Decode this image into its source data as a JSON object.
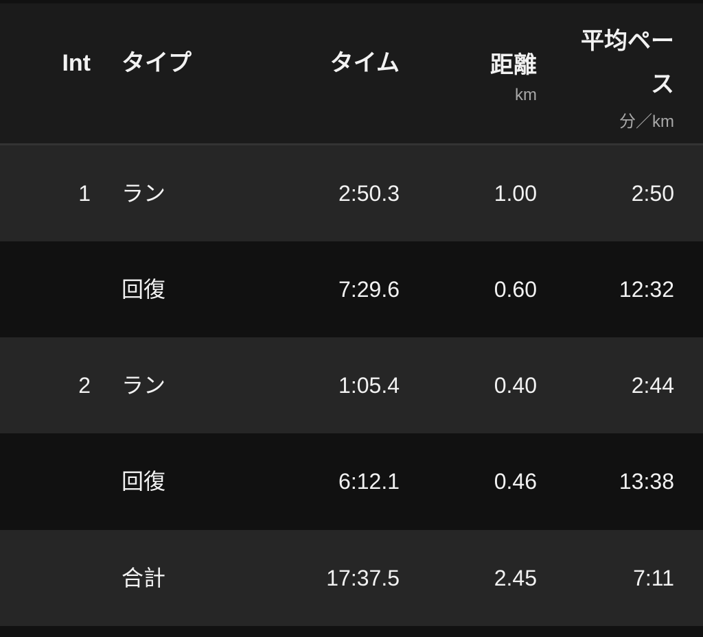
{
  "header": {
    "int": "Int",
    "type": "タイプ",
    "time": "タイム",
    "distance": "距離",
    "distance_unit": "km",
    "pace_line1": "平均ペー",
    "pace_line2": "ス",
    "pace_unit": "分／km"
  },
  "rows": [
    {
      "int": "1",
      "type": "ラン",
      "time": "2:50.3",
      "distance": "1.00",
      "pace": "2:50"
    },
    {
      "int": "",
      "type": "回復",
      "time": "7:29.6",
      "distance": "0.60",
      "pace": "12:32"
    },
    {
      "int": "2",
      "type": "ラン",
      "time": "1:05.4",
      "distance": "0.40",
      "pace": "2:44"
    },
    {
      "int": "",
      "type": "回復",
      "time": "6:12.1",
      "distance": "0.46",
      "pace": "13:38"
    },
    {
      "int": "",
      "type": "合計",
      "time": "17:37.5",
      "distance": "2.45",
      "pace": "7:11"
    }
  ],
  "colors": {
    "header_bg": "#1b1b1b",
    "row_light": "#262626",
    "row_dark": "#111111",
    "text": "#f2f2f2",
    "unit_text": "#a8a8a8"
  }
}
